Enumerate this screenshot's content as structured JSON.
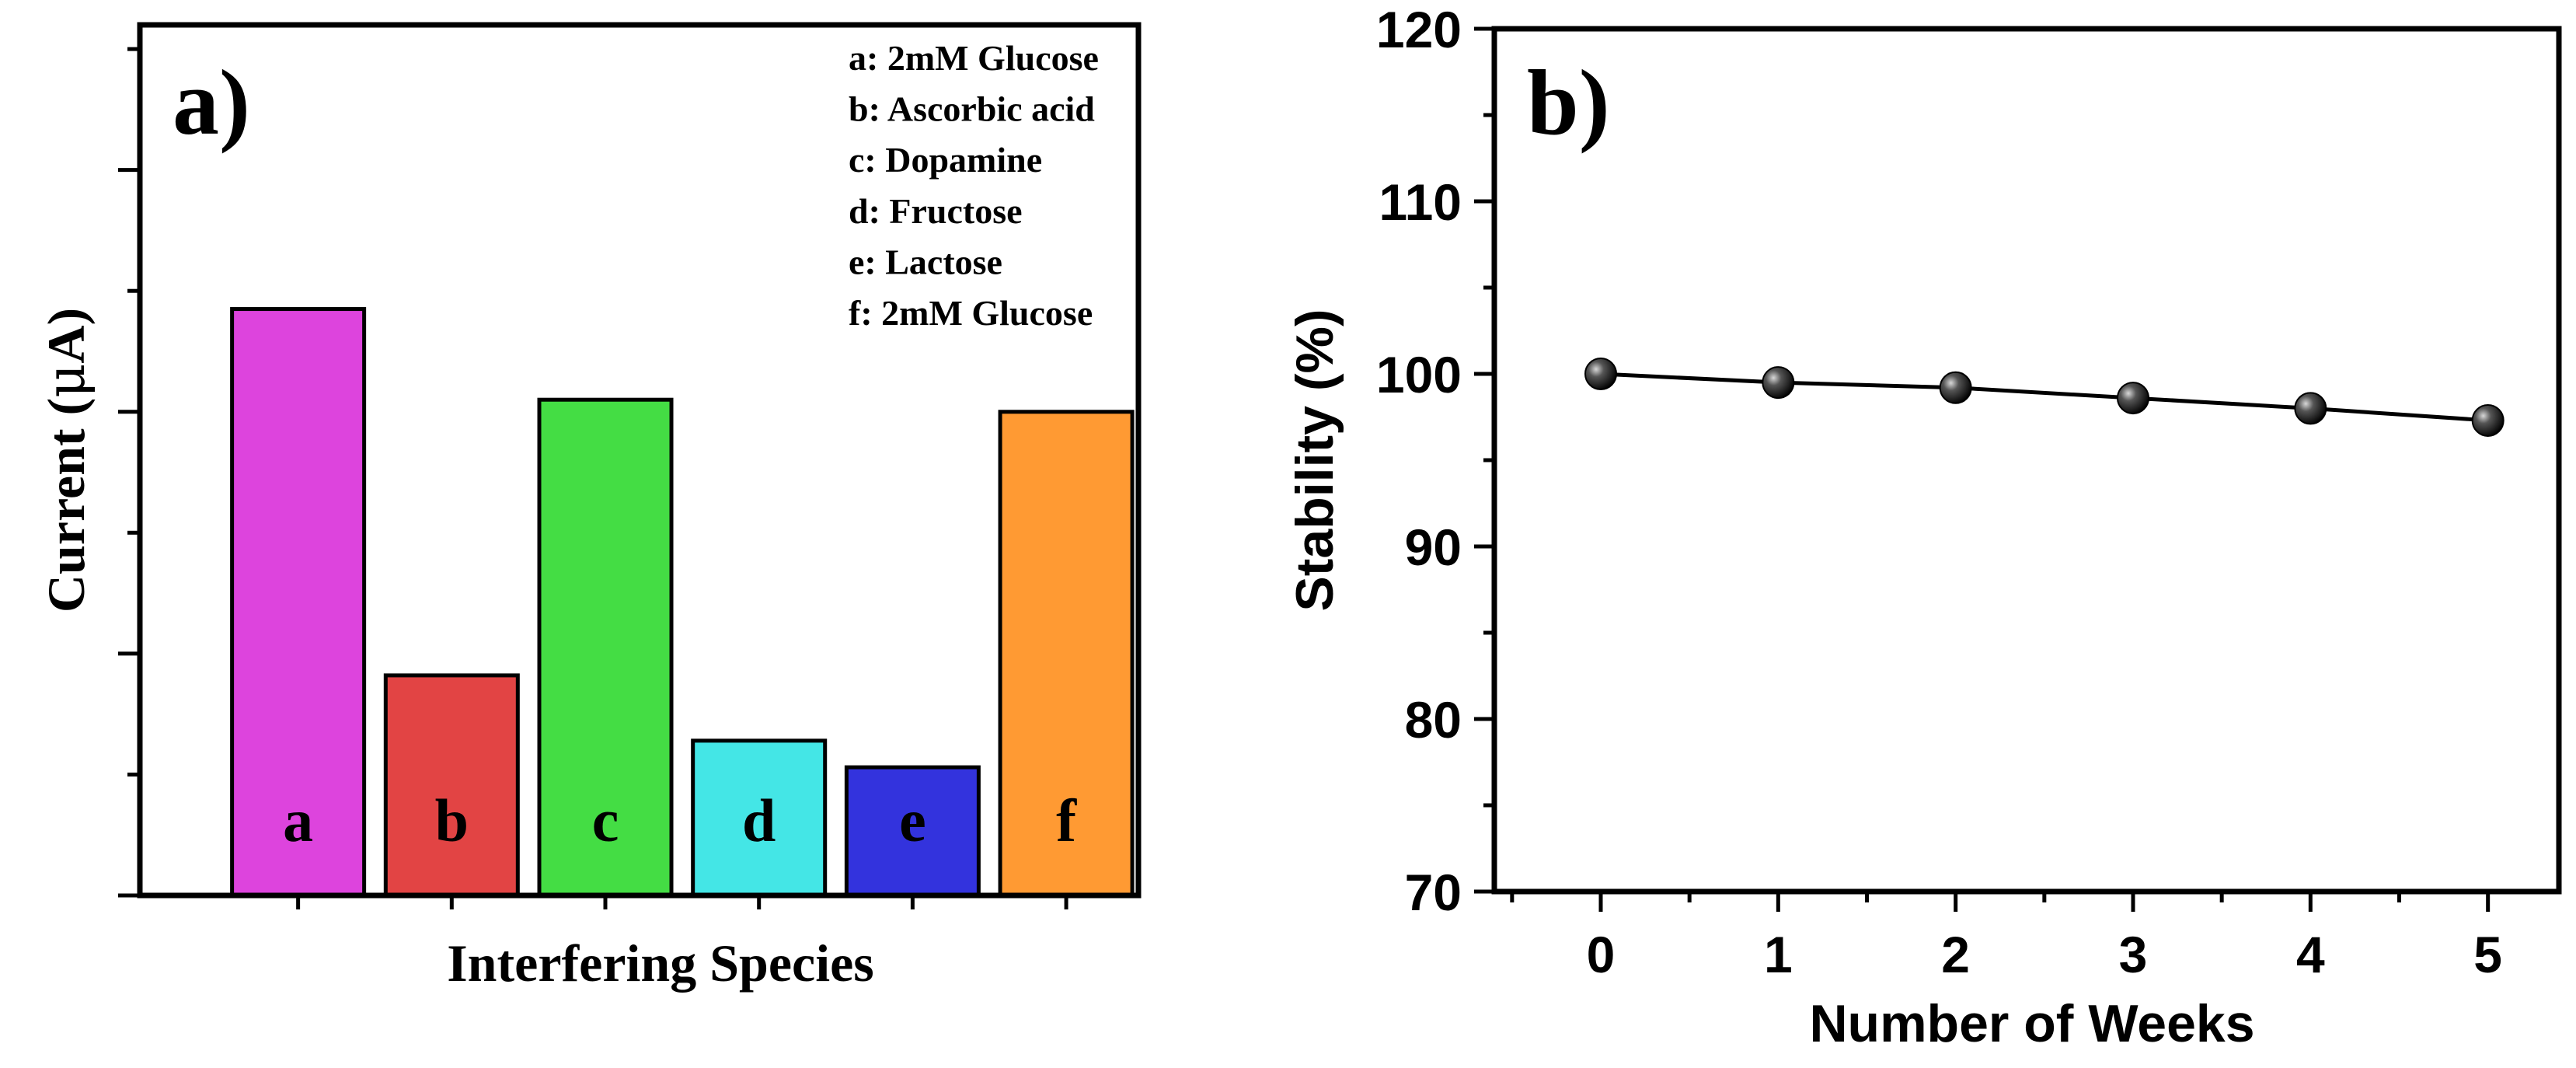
{
  "chart_data": [
    {
      "panel": "a)",
      "type": "bar",
      "xlabel": "Interfering Species",
      "ylabel_prefix": "Current (",
      "ylabel_mu": "μ",
      "ylabel_suffix": "A)",
      "ylim": [
        0,
        7.2
      ],
      "yticks_unlabeled": [
        0,
        1,
        2,
        3,
        4,
        5,
        6,
        7
      ],
      "categories": [
        "a",
        "b",
        "c",
        "d",
        "e",
        "f"
      ],
      "values": [
        4.85,
        1.82,
        4.1,
        1.28,
        1.06,
        4.0
      ],
      "colors": [
        "#dd44dd",
        "#e24444",
        "#44dd44",
        "#44e6e6",
        "#3333dd",
        "#ff9a33"
      ],
      "legend": [
        "a: 2mM Glucose",
        "b: Ascorbic acid",
        "c: Dopamine",
        "d: Fructose",
        "e: Lactose",
        "f: 2mM Glucose"
      ]
    },
    {
      "panel": "b)",
      "type": "line",
      "xlabel": "Number of Weeks",
      "ylabel": "Stability (%)",
      "x": [
        0,
        1,
        2,
        3,
        4,
        5
      ],
      "y": [
        100.0,
        99.5,
        99.2,
        98.6,
        98.0,
        97.3
      ],
      "xlim": [
        -0.6,
        5.4
      ],
      "ylim": [
        70,
        120
      ],
      "xticks": [
        0,
        1,
        2,
        3,
        4,
        5
      ],
      "yticks": [
        70,
        80,
        90,
        100,
        110,
        120
      ]
    }
  ]
}
